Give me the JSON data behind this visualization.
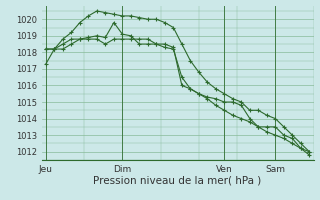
{
  "bg_color": "#cce8e8",
  "grid_color": "#88bb99",
  "line_color": "#2d6a2d",
  "xlabel": "Pression niveau de la mer( hPa )",
  "xlabel_fontsize": 7.5,
  "ytick_fontsize": 6.0,
  "xtick_fontsize": 6.5,
  "ylim": [
    1011.5,
    1020.8
  ],
  "yticks": [
    1012,
    1013,
    1014,
    1015,
    1016,
    1017,
    1018,
    1019,
    1020
  ],
  "xtick_labels": [
    "Jeu",
    "Dim",
    "Ven",
    "Sam"
  ],
  "xtick_positions": [
    0,
    9,
    21,
    27
  ],
  "vline_positions": [
    0,
    9,
    21,
    27
  ],
  "total_points": 32,
  "series1_x": [
    0,
    1,
    2,
    3,
    4,
    5,
    6,
    7,
    8,
    9,
    10,
    11,
    12,
    13,
    14,
    15,
    16,
    17,
    18,
    19,
    20,
    21,
    22,
    23,
    24,
    25,
    26,
    27,
    28,
    29,
    30,
    31
  ],
  "series1_y": [
    1017.3,
    1018.2,
    1018.2,
    1018.5,
    1018.8,
    1018.9,
    1019.0,
    1018.9,
    1019.8,
    1019.1,
    1019.0,
    1018.5,
    1018.5,
    1018.5,
    1018.5,
    1018.3,
    1016.0,
    1015.8,
    1015.5,
    1015.3,
    1015.2,
    1015.0,
    1015.0,
    1014.8,
    1014.0,
    1013.5,
    1013.5,
    1013.5,
    1013.0,
    1012.8,
    1012.2,
    1012.0
  ],
  "series2_x": [
    0,
    1,
    2,
    3,
    4,
    5,
    6,
    7,
    8,
    9,
    10,
    11,
    12,
    13,
    14,
    15,
    16,
    17,
    18,
    19,
    20,
    21,
    22,
    23,
    24,
    25,
    26,
    27,
    28,
    29,
    30,
    31
  ],
  "series2_y": [
    1018.2,
    1018.2,
    1018.8,
    1019.2,
    1019.8,
    1020.2,
    1020.5,
    1020.4,
    1020.3,
    1020.2,
    1020.2,
    1020.1,
    1020.0,
    1020.0,
    1019.8,
    1019.5,
    1018.5,
    1017.5,
    1016.8,
    1016.2,
    1015.8,
    1015.5,
    1015.2,
    1015.0,
    1014.5,
    1014.5,
    1014.2,
    1014.0,
    1013.5,
    1013.0,
    1012.5,
    1012.0
  ],
  "series3_x": [
    0,
    1,
    2,
    3,
    4,
    5,
    6,
    7,
    8,
    9,
    10,
    11,
    12,
    13,
    14,
    15,
    16,
    17,
    18,
    19,
    20,
    21,
    22,
    23,
    24,
    25,
    26,
    27,
    28,
    29,
    30,
    31
  ],
  "series3_y": [
    1018.2,
    1018.2,
    1018.5,
    1018.8,
    1018.8,
    1018.8,
    1018.8,
    1018.5,
    1018.8,
    1018.8,
    1018.8,
    1018.8,
    1018.8,
    1018.5,
    1018.3,
    1018.2,
    1016.5,
    1015.8,
    1015.5,
    1015.2,
    1014.8,
    1014.5,
    1014.2,
    1014.0,
    1013.8,
    1013.5,
    1013.2,
    1013.0,
    1012.8,
    1012.5,
    1012.2,
    1011.8
  ]
}
